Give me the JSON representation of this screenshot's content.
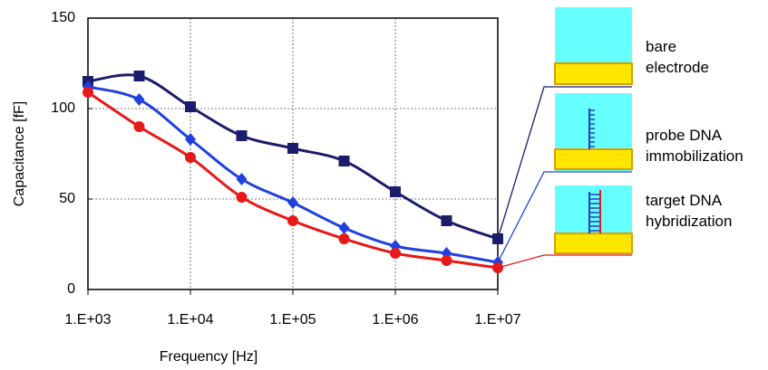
{
  "chart_data": {
    "type": "line",
    "x_label": "Frequency [Hz]",
    "y_label": "Capacitance [fF]",
    "x": [
      1000,
      3162,
      10000,
      31623,
      100000,
      316228,
      1000000,
      3162278,
      10000000
    ],
    "xscale": "log",
    "xlim": [
      1000,
      10000000
    ],
    "xticks": [
      {
        "value": 1000,
        "label": "1.E+03"
      },
      {
        "value": 10000,
        "label": "1.E+04"
      },
      {
        "value": 100000,
        "label": "1.E+05"
      },
      {
        "value": 1000000,
        "label": "1.E+06"
      },
      {
        "value": 10000000,
        "label": "1.E+07"
      }
    ],
    "ylim": [
      0,
      150
    ],
    "yticks": [
      0,
      50,
      100,
      150
    ],
    "grid": true,
    "series": [
      {
        "name": "bare electrode",
        "color": "#1c1c6c",
        "marker": "square",
        "values": [
          115,
          118,
          101,
          85,
          78,
          71,
          54,
          38,
          28
        ]
      },
      {
        "name": "probe DNA immobilization",
        "color": "#2040e0",
        "marker": "diamond",
        "values": [
          112,
          105,
          83,
          61,
          48,
          34,
          24,
          20,
          15
        ]
      },
      {
        "name": "target DNA hybridization",
        "color": "#e81818",
        "marker": "circle",
        "values": [
          109,
          90,
          73,
          51,
          38,
          28,
          20,
          16,
          12
        ]
      }
    ]
  }
}
